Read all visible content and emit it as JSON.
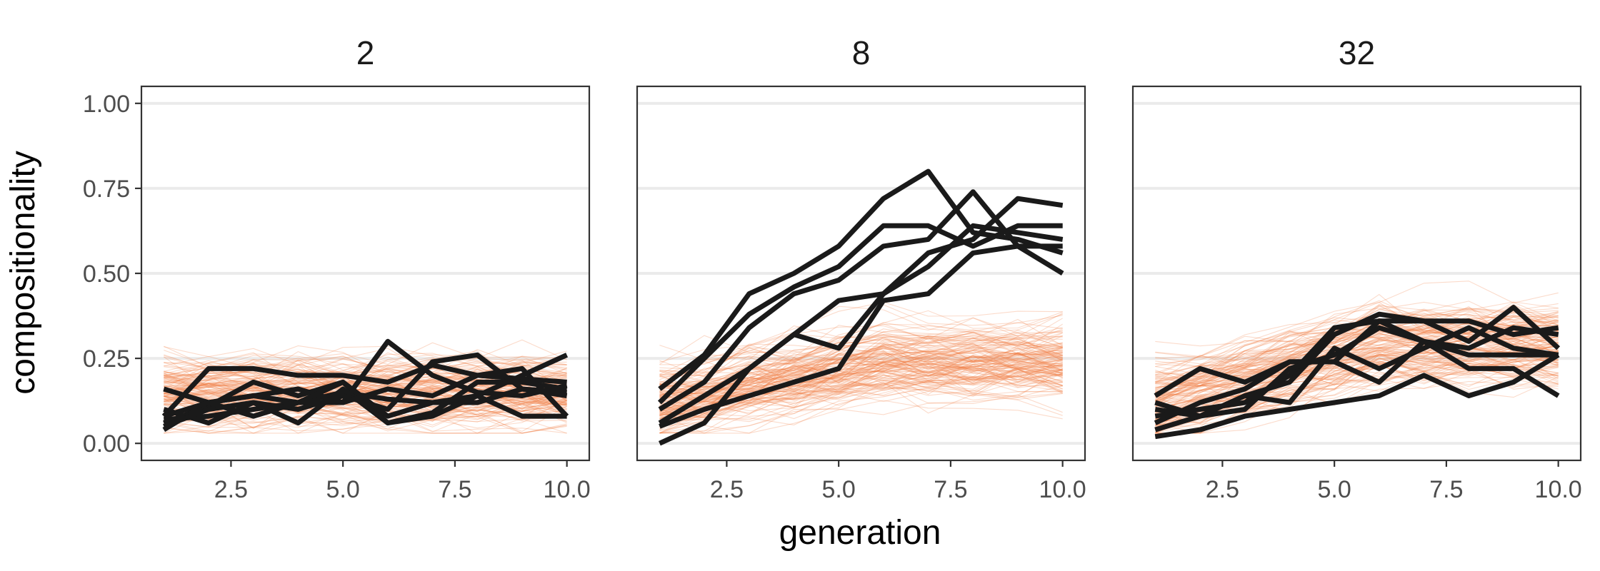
{
  "chart_data": {
    "type": "line",
    "xlabel": "generation",
    "ylabel": "compositionality",
    "xlim": [
      0.5,
      10.5
    ],
    "ylim": [
      -0.05,
      1.05
    ],
    "x_ticks": [
      "2.5",
      "5.0",
      "7.5",
      "10.0"
    ],
    "y_ticks": [
      "0.00",
      "0.25",
      "0.50",
      "0.75",
      "1.00"
    ],
    "grid": "horizontal",
    "colors": {
      "baseline": "#f07c45",
      "observed": "#1a1a1a",
      "grid": "#ebebeb"
    },
    "x": [
      1,
      2,
      3,
      4,
      5,
      6,
      7,
      8,
      9,
      10
    ],
    "panels": [
      {
        "title": "2",
        "baseline": {
          "count": 150,
          "start_mean": 0.15,
          "end_mean": 0.15,
          "spread": 0.07
        },
        "series": [
          [
            0.16,
            0.12,
            0.14,
            0.12,
            0.15,
            0.13,
            0.12,
            0.12,
            0.16,
            0.15
          ],
          [
            0.08,
            0.22,
            0.22,
            0.2,
            0.2,
            0.18,
            0.23,
            0.2,
            0.19,
            0.18
          ],
          [
            0.06,
            0.11,
            0.18,
            0.14,
            0.18,
            0.06,
            0.09,
            0.18,
            0.18,
            0.16
          ],
          [
            0.04,
            0.12,
            0.14,
            0.16,
            0.12,
            0.3,
            0.2,
            0.15,
            0.14,
            0.17
          ],
          [
            0.1,
            0.06,
            0.12,
            0.06,
            0.16,
            0.06,
            0.08,
            0.14,
            0.08,
            0.08
          ],
          [
            0.07,
            0.08,
            0.1,
            0.12,
            0.18,
            0.08,
            0.12,
            0.14,
            0.2,
            0.26
          ],
          [
            0.05,
            0.1,
            0.12,
            0.1,
            0.14,
            0.1,
            0.24,
            0.26,
            0.16,
            0.14
          ],
          [
            0.08,
            0.12,
            0.08,
            0.12,
            0.12,
            0.16,
            0.14,
            0.2,
            0.22,
            0.08
          ]
        ]
      },
      {
        "title": "8",
        "baseline": {
          "count": 150,
          "start_mean": 0.13,
          "end_mean": 0.25,
          "spread": 0.08
        },
        "series": [
          [
            0.16,
            0.26,
            0.44,
            0.5,
            0.58,
            0.72,
            0.8,
            0.62,
            0.6,
            0.56
          ],
          [
            0.12,
            0.25,
            0.38,
            0.46,
            0.52,
            0.64,
            0.64,
            0.58,
            0.64,
            0.64
          ],
          [
            0.1,
            0.18,
            0.34,
            0.44,
            0.48,
            0.58,
            0.6,
            0.74,
            0.58,
            0.5
          ],
          [
            0.06,
            0.14,
            0.22,
            0.32,
            0.28,
            0.44,
            0.56,
            0.6,
            0.72,
            0.7
          ],
          [
            0.0,
            0.06,
            0.22,
            0.32,
            0.42,
            0.44,
            0.52,
            0.64,
            0.62,
            0.6
          ],
          [
            0.05,
            0.1,
            0.14,
            0.18,
            0.22,
            0.42,
            0.44,
            0.56,
            0.58,
            0.58
          ]
        ]
      },
      {
        "title": "32",
        "baseline": {
          "count": 150,
          "start_mean": 0.13,
          "end_mean": 0.3,
          "spread": 0.09
        },
        "series": [
          [
            0.14,
            0.22,
            0.18,
            0.24,
            0.24,
            0.36,
            0.36,
            0.36,
            0.32,
            0.34
          ],
          [
            0.1,
            0.08,
            0.14,
            0.18,
            0.32,
            0.38,
            0.36,
            0.3,
            0.4,
            0.28
          ],
          [
            0.06,
            0.12,
            0.16,
            0.24,
            0.24,
            0.18,
            0.3,
            0.26,
            0.26,
            0.26
          ],
          [
            0.08,
            0.1,
            0.12,
            0.2,
            0.34,
            0.36,
            0.3,
            0.28,
            0.34,
            0.32
          ],
          [
            0.12,
            0.08,
            0.1,
            0.22,
            0.26,
            0.34,
            0.3,
            0.22,
            0.22,
            0.14
          ],
          [
            0.02,
            0.04,
            0.08,
            0.1,
            0.12,
            0.14,
            0.2,
            0.14,
            0.18,
            0.26
          ],
          [
            0.04,
            0.08,
            0.14,
            0.12,
            0.28,
            0.22,
            0.28,
            0.34,
            0.28,
            0.26
          ]
        ]
      }
    ]
  }
}
